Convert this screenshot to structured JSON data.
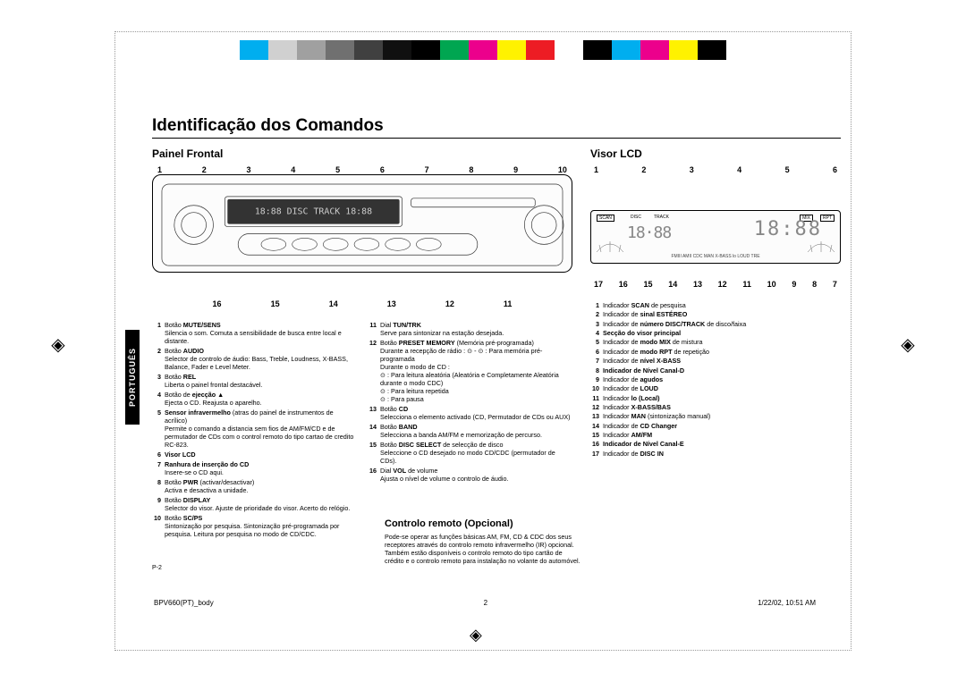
{
  "color_strip": [
    "#00aeef",
    "#d0d0d0",
    "#a0a0a0",
    "#707070",
    "#404040",
    "#101010",
    "#000000",
    "#00a651",
    "#ec008c",
    "#fff200",
    "#ed1c24",
    "#ffffff",
    "#000000",
    "#00aeef",
    "#ec008c",
    "#fff200",
    "#000000"
  ],
  "title": "Identificação dos Comandos",
  "section_front": "Painel Frontal",
  "section_lcd": "Visor LCD",
  "front_top_callouts": [
    "1",
    "2",
    "3",
    "4",
    "5",
    "6",
    "7",
    "8",
    "9",
    "10"
  ],
  "front_bottom_callouts": [
    "16",
    "15",
    "14",
    "13",
    "12",
    "11"
  ],
  "lcd_top_callouts": [
    "1",
    "2",
    "3",
    "4",
    "5",
    "6"
  ],
  "lcd_bottom_callouts": [
    "17",
    "16",
    "15",
    "14",
    "13",
    "12",
    "11",
    "10",
    "9",
    "8",
    "7"
  ],
  "lcd_band_text": "FMIII AMII CDC MAN X-BASS lo LOUD TRE",
  "lcd_tags": [
    "SCAN",
    "DISC",
    "TRACK",
    "MIX",
    "RPT"
  ],
  "lcd_digits": "18:88",
  "front_desc_col1": [
    {
      "n": "1",
      "t": "Botão <strong>MUTE/SENS</strong>",
      "d": "Silencia o som. Comuta a sensibilidade de busca entre local e distante."
    },
    {
      "n": "2",
      "t": "Botão <strong>AUDIO</strong>",
      "d": "Selector de controlo de áudio: Bass, Treble, Loudness, X-BASS, Balance, Fader e Level Meter."
    },
    {
      "n": "3",
      "t": "Botão <strong>REL</strong>",
      "d": "Liberta o painel frontal destacável."
    },
    {
      "n": "4",
      "t": "Botão de <strong>ejecção ▲</strong>",
      "d": "Ejecta o CD. Reajusta o aparelho."
    },
    {
      "n": "5",
      "t": "<strong>Sensor infravermelho</strong> (atras do painel de instrumentos de acrílico)",
      "d": "Permite o comando a distancia sem fios de AM/FM/CD e de permutador de CDs com o control remoto do tipo cartao de credito RC-823."
    },
    {
      "n": "6",
      "t": "<strong>Visor LCD</strong>",
      "d": ""
    },
    {
      "n": "7",
      "t": "<strong>Ranhura de inserção do CD</strong>",
      "d": "Insere-se o CD aqui."
    },
    {
      "n": "8",
      "t": "Botão <strong>PWR</strong> (activar/desactivar)",
      "d": "Activa e desactiva a unidade."
    },
    {
      "n": "9",
      "t": "Botão <strong>DISPLAY</strong>",
      "d": "Selector do visor. Ajuste de prioridade do visor. Acerto do relógio."
    },
    {
      "n": "10",
      "t": "Botão <strong>SC/PS</strong>",
      "d": "Sintonização por pesquisa. Sintonização pré-programada por pesquisa. Leitura por pesquisa no modo de CD/CDC."
    }
  ],
  "front_desc_col2": [
    {
      "n": "11",
      "t": "Dial <strong>TUN/TRK</strong>",
      "d": "Serve para sintonizar na estação desejada."
    },
    {
      "n": "12",
      "t": "Botão <strong>PRESET MEMORY</strong> (Memória pré-programada)",
      "d": "Durante a recepção de rádio : ⊙ - ⊙ : Para memória pré-programada<br>Durante o modo de CD :<br>⊙ : Para leitura aleatória (Aleatória e Completamente Aleatória durante o modo CDC)<br>⊙ : Para leitura repetida<br>⊙ : Para pausa"
    },
    {
      "n": "13",
      "t": "Botão <strong>CD</strong>",
      "d": "Selecciona o elemento activado (CD, Permutador de CDs ou AUX)"
    },
    {
      "n": "14",
      "t": "Botão <strong>BAND</strong>",
      "d": "Selecciona a banda AM/FM e memorização de percurso."
    },
    {
      "n": "15",
      "t": "Botão <strong>DISC SELECT</strong> de selecção de disco",
      "d": "Seleccione o CD desejado no modo CD/CDC (permutador de CDs)."
    },
    {
      "n": "16",
      "t": "Dial <strong>VOL</strong> de volume",
      "d": "Ajusta o nível de volume o controlo de áudio."
    }
  ],
  "lcd_desc": [
    {
      "n": "1",
      "t": "Indicador <strong>SCAN</strong> de pesquisa"
    },
    {
      "n": "2",
      "t": "Indicador de <strong>sinal ESTÉREO</strong>"
    },
    {
      "n": "3",
      "t": "Indicador de <strong>número DISC/TRACK</strong> de disco/faixa"
    },
    {
      "n": "4",
      "t": "<strong>Secção do visor principal</strong>"
    },
    {
      "n": "5",
      "t": "Indicador de <strong>modo MIX</strong> de mistura"
    },
    {
      "n": "6",
      "t": "Indicador de <strong>modo RPT</strong> de repetição"
    },
    {
      "n": "7",
      "t": "Indicador de <strong>nível X-BASS</strong>"
    },
    {
      "n": "8",
      "t": "<strong>Indicador de Nível Canal-D</strong>"
    },
    {
      "n": "9",
      "t": "Indicador de <strong>agudos</strong>"
    },
    {
      "n": "10",
      "t": "Indicador de <strong>LOUD</strong>"
    },
    {
      "n": "11",
      "t": "Indicador <strong>lo (Local)</strong>"
    },
    {
      "n": "12",
      "t": "Indicador <strong>X-BASS/BAS</strong>"
    },
    {
      "n": "13",
      "t": "Indicador <strong>MAN</strong> (sintonização manual)"
    },
    {
      "n": "14",
      "t": "Indicador de <strong>CD Changer</strong>"
    },
    {
      "n": "15",
      "t": "Indicador <strong>AM/FM</strong>"
    },
    {
      "n": "16",
      "t": "<strong>Indicador de Nível Canal-E</strong>"
    },
    {
      "n": "17",
      "t": "Indicador de <strong>DISC IN</strong>"
    }
  ],
  "remote_heading": "Controlo remoto (Opcional)",
  "remote_text": "Pode-se operar as funções básicas AM, FM, CD & CDC dos seus receptores através do controlo remoto infravermelho (IR) opcional. Também estão disponíveis o controlo remoto do tipo cartão de crédito e o controlo remoto para instalação no volante do automóvel.",
  "side_label": "PORTUGUÊS",
  "page_num": "P-2",
  "footer_left": "BPV660(PT)_body",
  "footer_mid": "2",
  "footer_right": "1/22/02, 10:51 AM"
}
